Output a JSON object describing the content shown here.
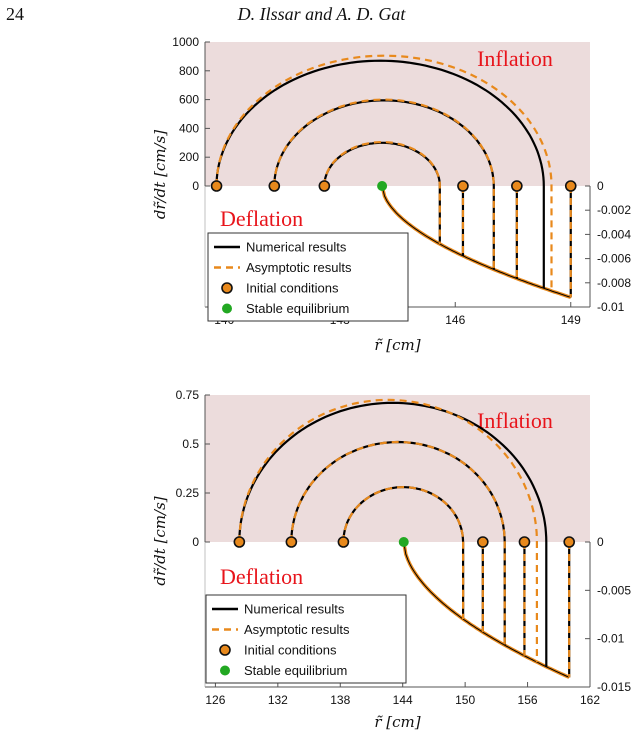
{
  "page": {
    "number": "24",
    "running_head": "D. Ilssar and A. D. Gat"
  },
  "colors": {
    "inflation_region": "#ecdcdc",
    "numerical": "#000000",
    "asymptotic": "#e8891c",
    "initial_marker_fill": "#e8891c",
    "stable_marker": "#22a822",
    "region_text": "#e8141b"
  },
  "legend": {
    "numerical": "Numerical results",
    "asymptotic": "Asymptotic results",
    "initial": "Initial conditions",
    "stable": "Stable equilibrium"
  },
  "chart_data": [
    {
      "type": "line",
      "region_labels": {
        "upper": "Inflation",
        "lower": "Deflation"
      },
      "xlabel": "r̃ [cm]",
      "ylabel": "dr̃/dt [cm/s]",
      "xlim": [
        139.5,
        149.5
      ],
      "xticks": [
        "140",
        "143",
        "146",
        "149"
      ],
      "ylim_upper": [
        0,
        1000
      ],
      "yticks_upper": [
        "0",
        "200",
        "400",
        "600",
        "800",
        "1000"
      ],
      "ylim_lower": [
        -0.01,
        0
      ],
      "yticks_lower": [
        "0",
        "-0.002",
        "-0.004",
        "-0.006",
        "-0.008",
        "-0.01"
      ],
      "equilibrium_x": 144.1,
      "lower_curve": {
        "x_end": 149.0,
        "y_end": -0.0092
      },
      "trajectories": [
        {
          "x0": 142.6,
          "numerical_x_end": 145.6,
          "numerical_peak": 300,
          "asymptotic_x_end": 145.6,
          "asymptotic_peak": 305
        },
        {
          "x0": 141.3,
          "numerical_x_end": 147.0,
          "numerical_peak": 595,
          "asymptotic_x_end": 147.0,
          "asymptotic_peak": 600
        },
        {
          "x0": 139.8,
          "numerical_x_end": 148.3,
          "numerical_peak": 870,
          "asymptotic_x_end": 148.5,
          "asymptotic_peak": 905
        }
      ],
      "initial_conditions_x": [
        139.8,
        141.3,
        142.6,
        146.2,
        147.6,
        149.0
      ],
      "grid": false,
      "legend_position": "bottom-left"
    },
    {
      "type": "line",
      "region_labels": {
        "upper": "Inflation",
        "lower": "Deflation"
      },
      "xlabel": "r̃ [cm]",
      "ylabel": "dr̃/dt [cm/s]",
      "xlim": [
        125,
        162
      ],
      "xticks": [
        "126",
        "132",
        "138",
        "144",
        "150",
        "156",
        "162"
      ],
      "ylim_upper": [
        0,
        0.75
      ],
      "yticks_upper": [
        "0",
        "0.25",
        "0.5",
        "0.75"
      ],
      "ylim_lower": [
        -0.015,
        0
      ],
      "yticks_lower": [
        "0",
        "-0.005",
        "-0.01",
        "-0.015"
      ],
      "equilibrium_x": 144.1,
      "lower_curve": {
        "x_end": 160.0,
        "y_end": -0.014
      },
      "trajectories": [
        {
          "x0": 138.3,
          "numerical_x_end": 149.8,
          "numerical_peak": 0.28,
          "asymptotic_x_end": 149.8,
          "asymptotic_peak": 0.28
        },
        {
          "x0": 133.3,
          "numerical_x_end": 153.8,
          "numerical_peak": 0.51,
          "asymptotic_x_end": 153.8,
          "asymptotic_peak": 0.51
        },
        {
          "x0": 128.3,
          "numerical_x_end": 157.8,
          "numerical_peak": 0.71,
          "asymptotic_x_end": 156.9,
          "asymptotic_peak": 0.725
        }
      ],
      "initial_conditions_x": [
        128.3,
        133.3,
        138.3,
        151.7,
        155.7,
        160.0
      ],
      "grid": false,
      "legend_position": "bottom-left"
    }
  ]
}
